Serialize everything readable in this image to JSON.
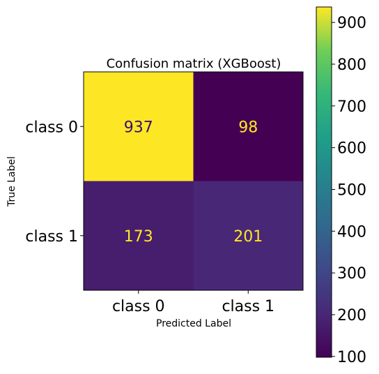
{
  "chart_data": {
    "type": "heatmap",
    "title": "Confusion matrix (XGBoost)",
    "xlabel": "Predicted Label",
    "ylabel": "True Label",
    "x_categories": [
      "class 0",
      "class 1"
    ],
    "y_categories": [
      "class 0",
      "class 1"
    ],
    "matrix": [
      [
        937,
        98
      ],
      [
        173,
        201
      ]
    ],
    "colormap": "viridis",
    "colorbar": {
      "range": [
        98,
        937
      ],
      "ticks": [
        100,
        200,
        300,
        400,
        500,
        600,
        700,
        800,
        900
      ]
    },
    "cell_text_colors": {
      "light_cell": "#3b0f70",
      "dark_cell": "#fde725"
    },
    "grid": false
  }
}
